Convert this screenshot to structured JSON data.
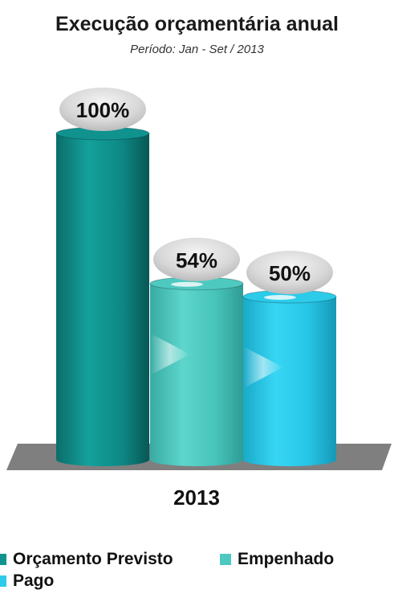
{
  "chart_data": {
    "type": "bar",
    "title": "Execução orçamentária anual",
    "subtitle": "Período: Jan - Set  / 2013",
    "categories": [
      "2013"
    ],
    "series": [
      {
        "name": "Orçamento Previsto",
        "values": [
          100
        ],
        "label": "100%",
        "color": "#10938f"
      },
      {
        "name": "Empenhado",
        "values": [
          54
        ],
        "label": "54%",
        "color": "#4ec9c0"
      },
      {
        "name": "Pago",
        "values": [
          50
        ],
        "label": "50%",
        "color": "#2ccbea"
      }
    ],
    "ylim": [
      0,
      100
    ],
    "style": "3d-cylinder",
    "grid": false,
    "legend_position": "bottom"
  }
}
